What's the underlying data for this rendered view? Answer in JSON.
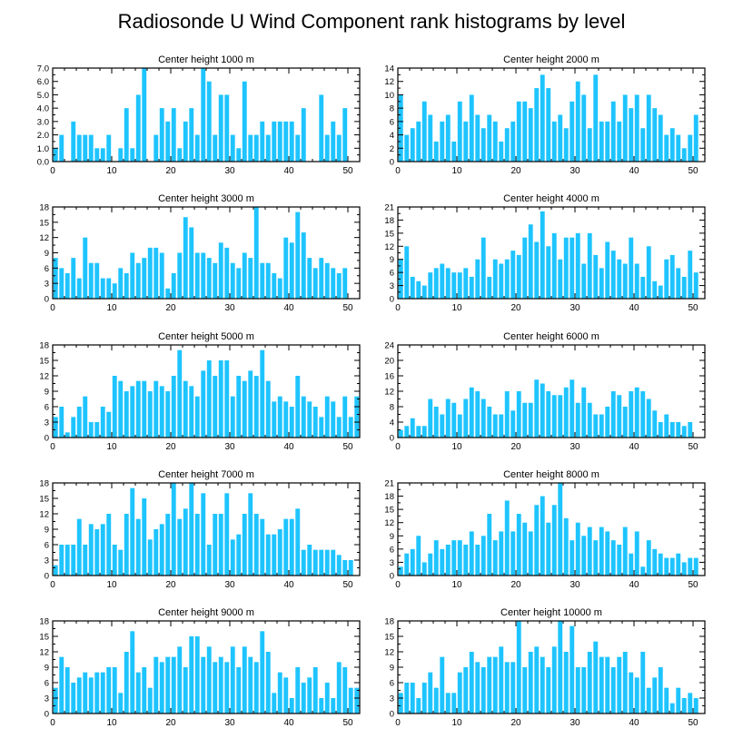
{
  "title": "Radiosonde U Wind Component rank histograms by level",
  "colors": {
    "bar": "#1ec4ff",
    "axis": "#000000",
    "background": "#ffffff"
  },
  "chart_data": [
    {
      "type": "bar",
      "title": "Center height 1000 m",
      "xlim": [
        0,
        52
      ],
      "ylim": [
        0,
        7
      ],
      "xticks": [
        0,
        10,
        20,
        30,
        40,
        50
      ],
      "yticks": [
        0,
        1,
        2,
        3,
        4,
        5,
        6,
        7
      ],
      "ytick_labels": [
        "0.0",
        "1.0",
        "2.0",
        "3.0",
        "4.0",
        "5.0",
        "6.0",
        "7.0"
      ],
      "values": [
        1,
        2,
        0,
        3,
        2,
        2,
        2,
        1,
        1,
        2,
        0,
        1,
        4,
        1,
        5,
        7,
        0,
        2,
        4,
        3,
        4,
        1,
        3,
        4,
        2,
        7,
        6,
        2,
        5,
        5,
        2,
        1,
        6,
        2,
        2,
        3,
        2,
        3,
        3,
        3,
        3,
        2,
        4,
        0,
        0,
        5,
        2,
        3,
        2,
        4,
        0,
        0
      ]
    },
    {
      "type": "bar",
      "title": "Center height 2000 m",
      "xlim": [
        0,
        52
      ],
      "ylim": [
        0,
        14
      ],
      "xticks": [
        0,
        10,
        20,
        30,
        40,
        50
      ],
      "yticks": [
        0,
        2,
        4,
        6,
        8,
        10,
        12,
        14
      ],
      "ytick_labels": [
        "0",
        "2",
        "4",
        "6",
        "8",
        "10",
        "12",
        "14"
      ],
      "values": [
        10,
        4,
        5,
        6,
        9,
        7,
        3,
        6,
        7,
        3,
        9,
        6,
        10,
        7,
        5,
        7,
        6,
        3,
        5,
        6,
        9,
        9,
        8,
        11,
        13,
        11,
        6,
        7,
        5,
        9,
        12,
        10,
        5,
        13,
        6,
        6,
        9,
        6,
        10,
        8,
        10,
        5,
        10,
        8,
        7,
        4,
        5,
        4,
        2,
        4,
        7,
        0
      ]
    },
    {
      "type": "bar",
      "title": "Center height 3000 m",
      "xlim": [
        0,
        52
      ],
      "ylim": [
        0,
        18
      ],
      "xticks": [
        0,
        10,
        20,
        30,
        40,
        50
      ],
      "yticks": [
        0,
        3,
        6,
        9,
        12,
        15,
        18
      ],
      "ytick_labels": [
        "0",
        "3",
        "6",
        "9",
        "12",
        "15",
        "18"
      ],
      "values": [
        8,
        6,
        5,
        8,
        4,
        12,
        7,
        7,
        4,
        4,
        3,
        6,
        5,
        9,
        7,
        8,
        10,
        10,
        9,
        2,
        5,
        9,
        16,
        14,
        9,
        9,
        8,
        7,
        11,
        10,
        7,
        6,
        9,
        8,
        18,
        7,
        7,
        5,
        4,
        12,
        11,
        17,
        13,
        8,
        6,
        8,
        7,
        6,
        5,
        6,
        0,
        0
      ]
    },
    {
      "type": "bar",
      "title": "Center height 4000 m",
      "xlim": [
        0,
        52
      ],
      "ylim": [
        0,
        21
      ],
      "xticks": [
        0,
        10,
        20,
        30,
        40,
        50
      ],
      "yticks": [
        0,
        3,
        6,
        9,
        12,
        15,
        18,
        21
      ],
      "ytick_labels": [
        "0",
        "3",
        "6",
        "9",
        "12",
        "15",
        "18",
        "21"
      ],
      "values": [
        9,
        12,
        5,
        4,
        3,
        6,
        7,
        8,
        7,
        6,
        6,
        7,
        5,
        9,
        14,
        5,
        9,
        8,
        9,
        11,
        10,
        14,
        17,
        13,
        20,
        12,
        15,
        9,
        14,
        14,
        15,
        8,
        15,
        10,
        7,
        13,
        11,
        9,
        8,
        14,
        8,
        5,
        12,
        4,
        3,
        9,
        10,
        7,
        5,
        11,
        6,
        0
      ]
    },
    {
      "type": "bar",
      "title": "Center height 5000 m",
      "xlim": [
        0,
        52
      ],
      "ylim": [
        0,
        18
      ],
      "xticks": [
        0,
        10,
        20,
        30,
        40,
        50
      ],
      "yticks": [
        0,
        3,
        6,
        9,
        12,
        15,
        18
      ],
      "ytick_labels": [
        "0",
        "3",
        "6",
        "9",
        "12",
        "15",
        "18"
      ],
      "values": [
        4,
        6,
        1,
        4,
        6,
        8,
        3,
        3,
        6,
        5,
        12,
        11,
        9,
        10,
        11,
        11,
        9,
        11,
        10,
        9,
        12,
        17,
        11,
        10,
        8,
        13,
        15,
        12,
        15,
        15,
        8,
        12,
        11,
        13,
        12,
        17,
        11,
        7,
        8,
        7,
        6,
        12,
        8,
        7,
        6,
        4,
        8,
        7,
        4,
        8,
        4,
        8
      ]
    },
    {
      "type": "bar",
      "title": "Center height 6000 m",
      "xlim": [
        0,
        52
      ],
      "ylim": [
        0,
        24
      ],
      "xticks": [
        0,
        10,
        20,
        30,
        40,
        50
      ],
      "yticks": [
        0,
        4,
        8,
        12,
        16,
        20,
        24
      ],
      "ytick_labels": [
        "0",
        "4",
        "8",
        "12",
        "16",
        "20",
        "24"
      ],
      "values": [
        2,
        3,
        5,
        3,
        3,
        10,
        8,
        6,
        10,
        9,
        6,
        10,
        13,
        12,
        10,
        8,
        6,
        6,
        12,
        7,
        12,
        9,
        9,
        15,
        14,
        12,
        11,
        11,
        13,
        15,
        9,
        13,
        9,
        6,
        6,
        8,
        12,
        11,
        8,
        12,
        13,
        12,
        10,
        7,
        4,
        6,
        4,
        4,
        3,
        4,
        0,
        0
      ]
    },
    {
      "type": "bar",
      "title": "Center height 7000 m",
      "xlim": [
        0,
        52
      ],
      "ylim": [
        0,
        18
      ],
      "xticks": [
        0,
        10,
        20,
        30,
        40,
        50
      ],
      "yticks": [
        0,
        3,
        6,
        9,
        12,
        15,
        18
      ],
      "ytick_labels": [
        "0",
        "3",
        "6",
        "9",
        "12",
        "15",
        "18"
      ],
      "values": [
        2,
        6,
        6,
        6,
        11,
        6,
        10,
        9,
        10,
        12,
        6,
        5,
        12,
        17,
        11,
        15,
        7,
        9,
        10,
        12,
        18,
        11,
        13,
        18,
        12,
        16,
        6,
        12,
        12,
        16,
        7,
        8,
        12,
        16,
        12,
        11,
        8,
        8,
        9,
        11,
        11,
        13,
        5,
        6,
        5,
        5,
        5,
        5,
        4,
        3,
        3,
        0
      ]
    },
    {
      "type": "bar",
      "title": "Center height 8000 m",
      "xlim": [
        0,
        52
      ],
      "ylim": [
        0,
        21
      ],
      "xticks": [
        0,
        10,
        20,
        30,
        40,
        50
      ],
      "yticks": [
        0,
        3,
        6,
        9,
        12,
        15,
        18,
        21
      ],
      "ytick_labels": [
        "0",
        "3",
        "6",
        "9",
        "12",
        "15",
        "18",
        "21"
      ],
      "values": [
        2,
        5,
        6,
        9,
        3,
        5,
        8,
        6,
        7,
        8,
        8,
        7,
        10,
        7,
        9,
        14,
        8,
        10,
        17,
        10,
        14,
        12,
        10,
        16,
        18,
        12,
        16,
        21,
        13,
        8,
        12,
        9,
        11,
        8,
        11,
        10,
        8,
        7,
        11,
        5,
        10,
        2,
        8,
        6,
        5,
        4,
        4,
        5,
        3,
        4,
        4,
        0
      ]
    },
    {
      "type": "bar",
      "title": "Center height 9000 m",
      "xlim": [
        0,
        52
      ],
      "ylim": [
        0,
        18
      ],
      "xticks": [
        0,
        10,
        20,
        30,
        40,
        50
      ],
      "yticks": [
        0,
        3,
        6,
        9,
        12,
        15,
        18
      ],
      "ytick_labels": [
        "0",
        "3",
        "6",
        "9",
        "12",
        "15",
        "18"
      ],
      "values": [
        5,
        11,
        9,
        6,
        7,
        8,
        7,
        8,
        8,
        9,
        9,
        4,
        12,
        16,
        8,
        9,
        5,
        11,
        10,
        11,
        11,
        13,
        9,
        15,
        15,
        11,
        13,
        10,
        11,
        10,
        13,
        9,
        13,
        11,
        10,
        16,
        12,
        4,
        8,
        7,
        3,
        9,
        6,
        7,
        9,
        3,
        6,
        3,
        10,
        9,
        5,
        5
      ]
    },
    {
      "type": "bar",
      "title": "Center height 10000 m",
      "xlim": [
        0,
        52
      ],
      "ylim": [
        0,
        18
      ],
      "xticks": [
        0,
        10,
        20,
        30,
        40,
        50
      ],
      "yticks": [
        0,
        3,
        6,
        9,
        12,
        15,
        18
      ],
      "ytick_labels": [
        "0",
        "3",
        "6",
        "9",
        "12",
        "15",
        "18"
      ],
      "values": [
        4,
        6,
        6,
        3,
        6,
        8,
        5,
        11,
        4,
        4,
        8,
        9,
        12,
        10,
        9,
        11,
        11,
        13,
        10,
        10,
        18,
        9,
        12,
        13,
        11,
        9,
        13,
        18,
        12,
        17,
        9,
        9,
        12,
        14,
        11,
        11,
        9,
        11,
        12,
        8,
        7,
        12,
        5,
        7,
        9,
        5,
        2,
        5,
        3,
        4,
        3,
        0
      ]
    }
  ]
}
